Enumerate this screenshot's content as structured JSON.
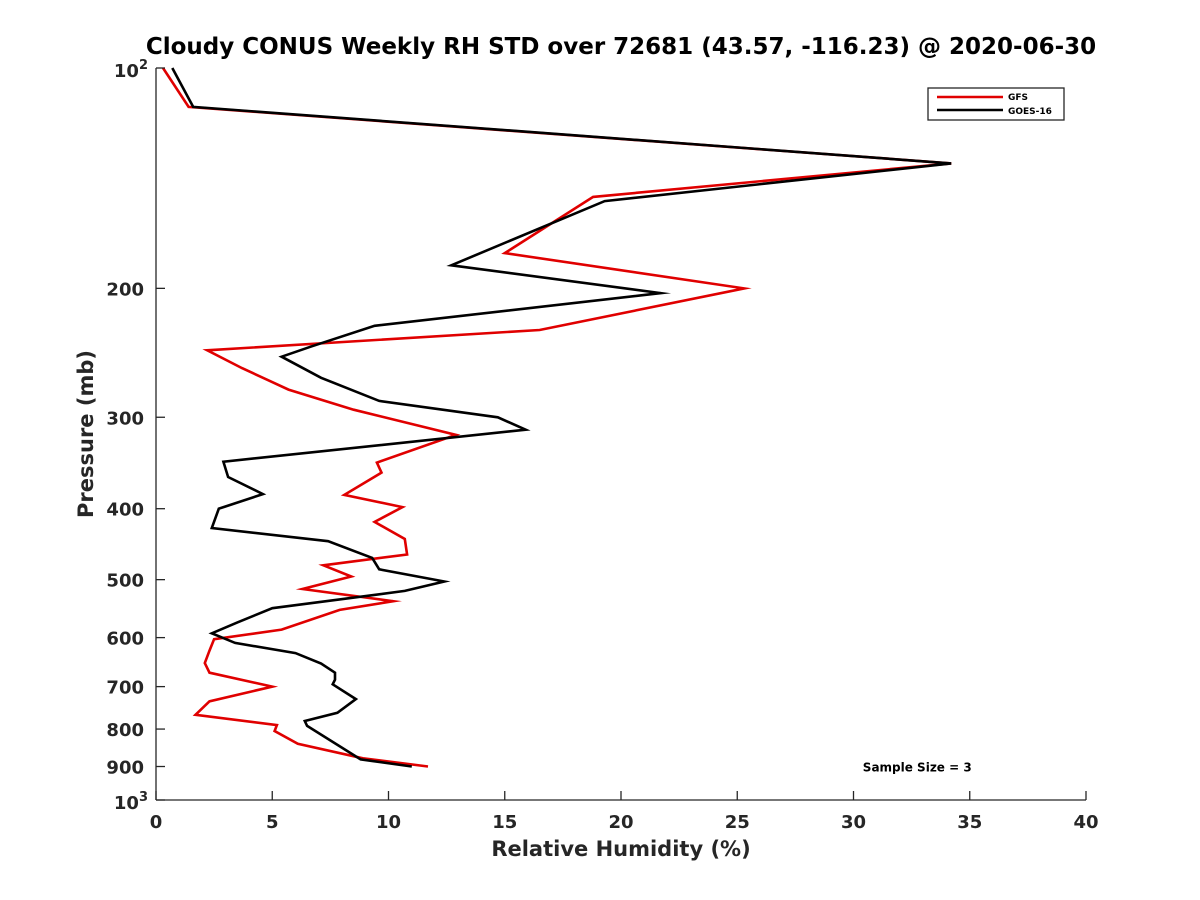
{
  "chart_data": {
    "type": "line",
    "title": "Cloudy CONUS Weekly RH STD over 72681 (43.57, -116.23) @ 2020-06-30",
    "xlabel": "Relative Humidity (%)",
    "ylabel": "Pressure (mb)",
    "xlim": [
      0,
      40
    ],
    "ylim": [
      100,
      1000
    ],
    "yscale": "log",
    "y_reversed": true,
    "x_ticks": [
      0,
      5,
      10,
      15,
      20,
      25,
      30,
      35,
      40
    ],
    "x_tick_labels": [
      "0",
      "5",
      "10",
      "15",
      "20",
      "25",
      "30",
      "35",
      "40"
    ],
    "y_ticks": [
      200,
      300,
      400,
      500,
      600,
      700,
      800,
      900
    ],
    "y_tick_labels": [
      "200",
      "300",
      "400",
      "500",
      "600",
      "700",
      "800",
      "900"
    ],
    "y_limit_labels": {
      "top": {
        "base": "10",
        "exp": "2"
      },
      "bottom": {
        "base": "10",
        "exp": "3"
      }
    },
    "grid": false,
    "legend_position": "top-right",
    "series": [
      {
        "name": "GFS",
        "color": "#e00000",
        "x": [
          0.3,
          1.4,
          34.2,
          18.8,
          15.0,
          25.3,
          16.5,
          2.2,
          3.7,
          5.7,
          8.5,
          12.9,
          9.5,
          9.7,
          8.1,
          10.6,
          9.4,
          10.7,
          10.8,
          7.2,
          8.4,
          6.3,
          10.2,
          7.9,
          5.4,
          2.5,
          2.3,
          2.1,
          2.3,
          5.0,
          2.3,
          1.7,
          5.2,
          5.1,
          6.1,
          8.9,
          11.7
        ],
        "y": [
          100,
          113,
          135,
          150,
          179,
          200,
          228,
          243,
          257,
          275,
          293,
          317,
          346,
          357,
          383,
          398,
          417,
          440,
          462,
          478,
          495,
          515,
          535,
          550,
          585,
          603,
          625,
          650,
          670,
          700,
          733,
          765,
          790,
          805,
          838,
          877,
          900
        ]
      },
      {
        "name": "GOES-16",
        "color": "#000000",
        "x": [
          0.7,
          1.6,
          34.2,
          19.3,
          12.7,
          21.7,
          9.4,
          6.7,
          5.4,
          7.1,
          9.6,
          14.7,
          15.9,
          2.9,
          3.1,
          4.6,
          2.7,
          2.4,
          7.4,
          9.3,
          9.6,
          12.4,
          10.7,
          5.0,
          3.5,
          2.4,
          3.4,
          6.0,
          7.1,
          7.7,
          7.7,
          7.6,
          8.6,
          7.8,
          6.4,
          6.5,
          8.8,
          11.0
        ],
        "y": [
          100,
          113,
          135,
          152,
          186,
          203,
          225,
          240,
          248,
          265,
          285,
          300,
          312,
          345,
          362,
          382,
          400,
          425,
          443,
          467,
          484,
          503,
          518,
          547,
          572,
          592,
          610,
          630,
          651,
          670,
          685,
          695,
          728,
          760,
          780,
          792,
          880,
          900
        ]
      }
    ],
    "annotations": [
      {
        "text": "Sample Size = 3",
        "x": 30.4,
        "y": 900
      }
    ]
  }
}
